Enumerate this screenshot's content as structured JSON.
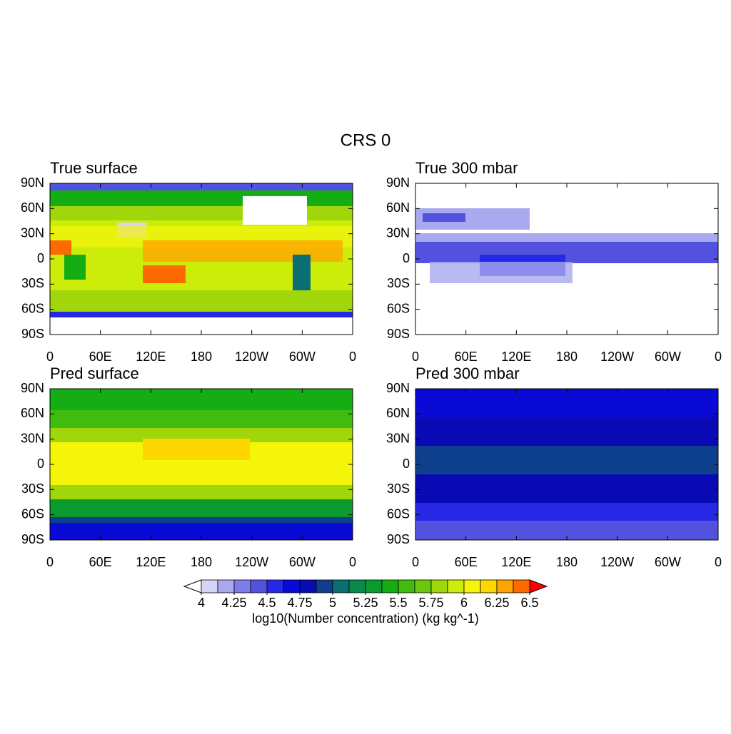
{
  "title": "CRS  0",
  "panels": [
    {
      "title": "True surface"
    },
    {
      "title": "True 300 mbar"
    },
    {
      "title": "Pred surface"
    },
    {
      "title": "Pred 300 mbar"
    }
  ],
  "lon_ticks": [
    {
      "value": 0,
      "label": "0"
    },
    {
      "value": 60,
      "label": "60E"
    },
    {
      "value": 120,
      "label": "120E"
    },
    {
      "value": 180,
      "label": "180"
    },
    {
      "value": 240,
      "label": "120W"
    },
    {
      "value": 300,
      "label": "60W"
    },
    {
      "value": 360,
      "label": "0"
    }
  ],
  "lat_ticks": [
    {
      "value": 90,
      "label": "90N"
    },
    {
      "value": 60,
      "label": "60N"
    },
    {
      "value": 30,
      "label": "30N"
    },
    {
      "value": 0,
      "label": "0"
    },
    {
      "value": -30,
      "label": "30S"
    },
    {
      "value": -60,
      "label": "60S"
    },
    {
      "value": -90,
      "label": "90S"
    }
  ],
  "colorbar": {
    "label": "log10(Number concentration) (kg kg^-1)",
    "ticks": [
      4,
      4.25,
      4.5,
      4.75,
      5,
      5.25,
      5.5,
      5.75,
      6,
      6.25,
      6.5
    ],
    "low_color": "#ffffff",
    "high_color": "#ff0000",
    "colors": [
      "#d4d4f7",
      "#a9a9ef",
      "#7d7de7",
      "#5252df",
      "#2727e6",
      "#0a0ad6",
      "#0a0ab4",
      "#0d3f8c",
      "#0a6e73",
      "#0a8a4a",
      "#0a9a30",
      "#14ad14",
      "#40bc10",
      "#6cc80a",
      "#a0d60a",
      "#ccec0a",
      "#f5f50a",
      "#ffd700",
      "#ffa500",
      "#ff6a00"
    ]
  }
}
